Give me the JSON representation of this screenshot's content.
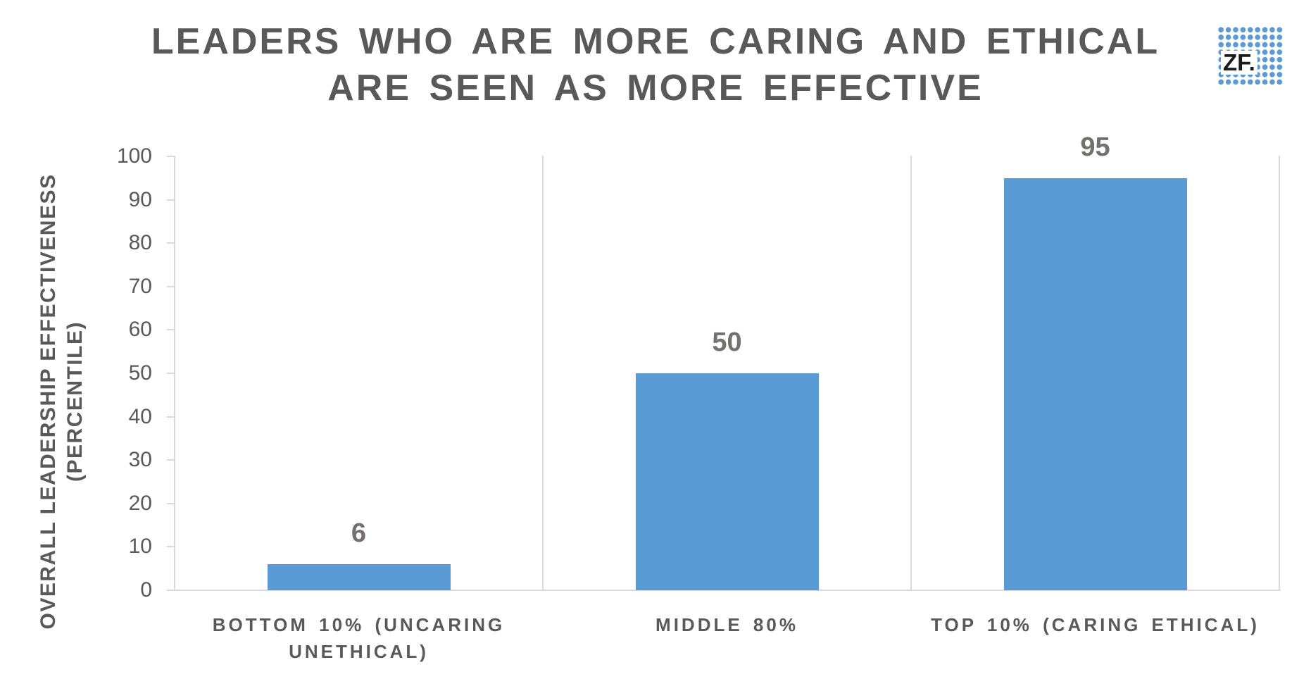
{
  "title": {
    "line1": "LEADERS WHO ARE MORE CARING AND ETHICAL",
    "line2": "ARE SEEN AS MORE EFFECTIVE"
  },
  "logo": {
    "text": "ZF."
  },
  "chart_data": {
    "type": "bar",
    "title": "LEADERS WHO ARE MORE CARING AND ETHICAL ARE SEEN AS MORE EFFECTIVE",
    "categories": [
      "BOTTOM 10% (UNCARING UNETHICAL)",
      "MIDDLE 80%",
      "TOP 10% (CARING ETHICAL)"
    ],
    "values": [
      6,
      50,
      95
    ],
    "data_labels": [
      "6",
      "50",
      "95"
    ],
    "xlabel": "",
    "ylabel": "OVERALL LEADERSHIP EFFECTIVENESS (PERCENTILE)",
    "ylabel_line1": "OVERALL LEADERSHIP EFFECTIVENESS",
    "ylabel_line2": "(PERCENTILE)",
    "ylim": [
      0,
      100
    ],
    "yticks": [
      0,
      10,
      20,
      30,
      40,
      50,
      60,
      70,
      80,
      90,
      100
    ],
    "grid": "vertical category separators only",
    "legend": "none",
    "bar_color": "#5B9BD5"
  },
  "colors": {
    "background": "#FFFFFF",
    "title_text": "#595959",
    "axis_text": "#595959",
    "data_label_text": "#757070",
    "axis_line": "#D9D9D9",
    "bar": "#5B9BD5",
    "logo_dot": "#5B9BD5",
    "logo_text": "#1A1A1A"
  }
}
